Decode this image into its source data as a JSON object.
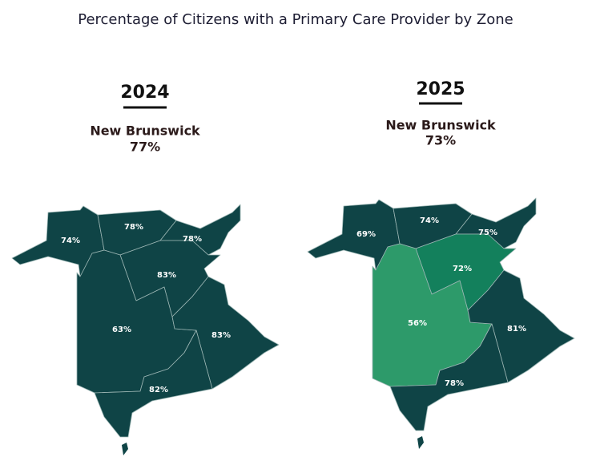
{
  "title": "Percentage of Citizens with a Primary Care Provider by Zone",
  "panels": [
    {
      "year": "2024",
      "region": "New Brunswick",
      "total": "77%",
      "zones": [
        {
          "label": "74%",
          "color": "#0f4446"
        },
        {
          "label": "78%",
          "color": "#0f4446"
        },
        {
          "label": "78%",
          "color": "#0f4446"
        },
        {
          "label": "83%",
          "color": "#0f4446"
        },
        {
          "label": "63%",
          "color": "#0f4446"
        },
        {
          "label": "83%",
          "color": "#0f4446"
        },
        {
          "label": "82%",
          "color": "#0f4446"
        }
      ]
    },
    {
      "year": "2025",
      "region": "New Brunswick",
      "total": "73%",
      "zones": [
        {
          "label": "69%",
          "color": "#0f4446"
        },
        {
          "label": "74%",
          "color": "#0f4446"
        },
        {
          "label": "75%",
          "color": "#0f4446"
        },
        {
          "label": "72%",
          "color": "#13805c"
        },
        {
          "label": "56%",
          "color": "#2d9a6a"
        },
        {
          "label": "81%",
          "color": "#0f4446"
        },
        {
          "label": "78%",
          "color": "#0f4446"
        }
      ]
    }
  ]
}
